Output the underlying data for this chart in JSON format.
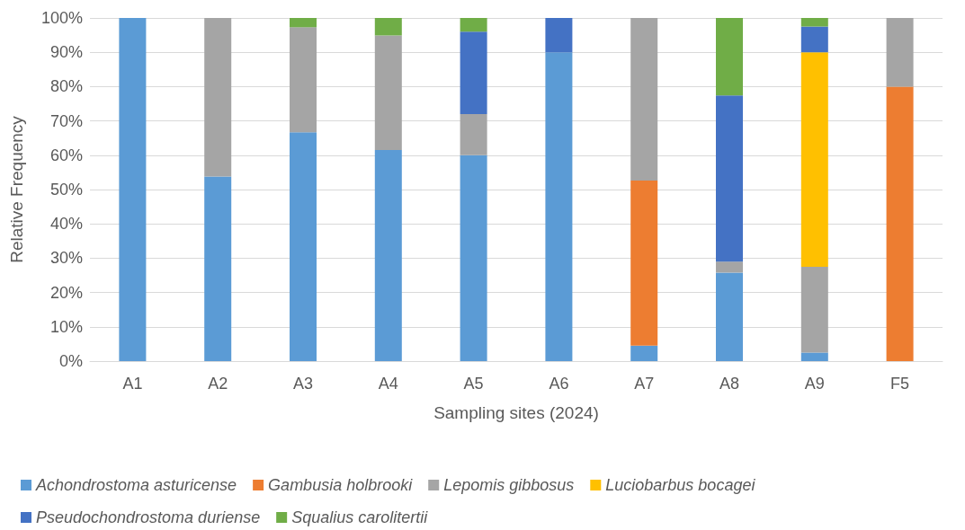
{
  "chart_data": {
    "type": "bar",
    "stacked": true,
    "xlabel": "Sampling sites (2024)",
    "ylabel": "Relative Frequency",
    "categories": [
      "A1",
      "A2",
      "A3",
      "A4",
      "A5",
      "A6",
      "A7",
      "A8",
      "A9",
      "F5"
    ],
    "series": [
      {
        "name": "Achondrostoma asturicense",
        "color": "#5b9bd5",
        "values": [
          100,
          53.8,
          66.7,
          61.5,
          60,
          90,
          4.5,
          25.8,
          2.5,
          0
        ]
      },
      {
        "name": "Gambusia holbrooki",
        "color": "#ed7d31",
        "values": [
          0,
          0,
          0,
          0,
          0,
          0,
          48.1,
          0,
          0,
          80
        ]
      },
      {
        "name": "Lepomis gibbosus",
        "color": "#a5a5a5",
        "values": [
          0,
          46.2,
          30.6,
          33.4,
          12,
          0,
          47.4,
          3.2,
          25,
          20
        ]
      },
      {
        "name": "Luciobarbus bocagei",
        "color": "#ffc000",
        "values": [
          0,
          0,
          0,
          0,
          0,
          0,
          0,
          0,
          62.5,
          0
        ]
      },
      {
        "name": "Pseudochondrostoma duriense",
        "color": "#4472c4",
        "values": [
          0,
          0,
          0,
          0,
          24,
          10,
          0,
          48.4,
          7.5,
          0
        ]
      },
      {
        "name": "Squalius carolitertii",
        "color": "#70ad47",
        "values": [
          0,
          0,
          2.7,
          5.1,
          4,
          0,
          0,
          22.6,
          2.5,
          0
        ]
      }
    ],
    "ylim": [
      0,
      100
    ],
    "yticks": [
      {
        "value": 0,
        "label": "0%"
      },
      {
        "value": 10,
        "label": "10%"
      },
      {
        "value": 20,
        "label": "20%"
      },
      {
        "value": 30,
        "label": "30%"
      },
      {
        "value": 40,
        "label": "40%"
      },
      {
        "value": 50,
        "label": "50%"
      },
      {
        "value": 60,
        "label": "60%"
      },
      {
        "value": 70,
        "label": "70%"
      },
      {
        "value": 80,
        "label": "80%"
      },
      {
        "value": 90,
        "label": "90%"
      },
      {
        "value": 100,
        "label": "100%"
      }
    ],
    "grid": "y",
    "legend": "bottom"
  }
}
